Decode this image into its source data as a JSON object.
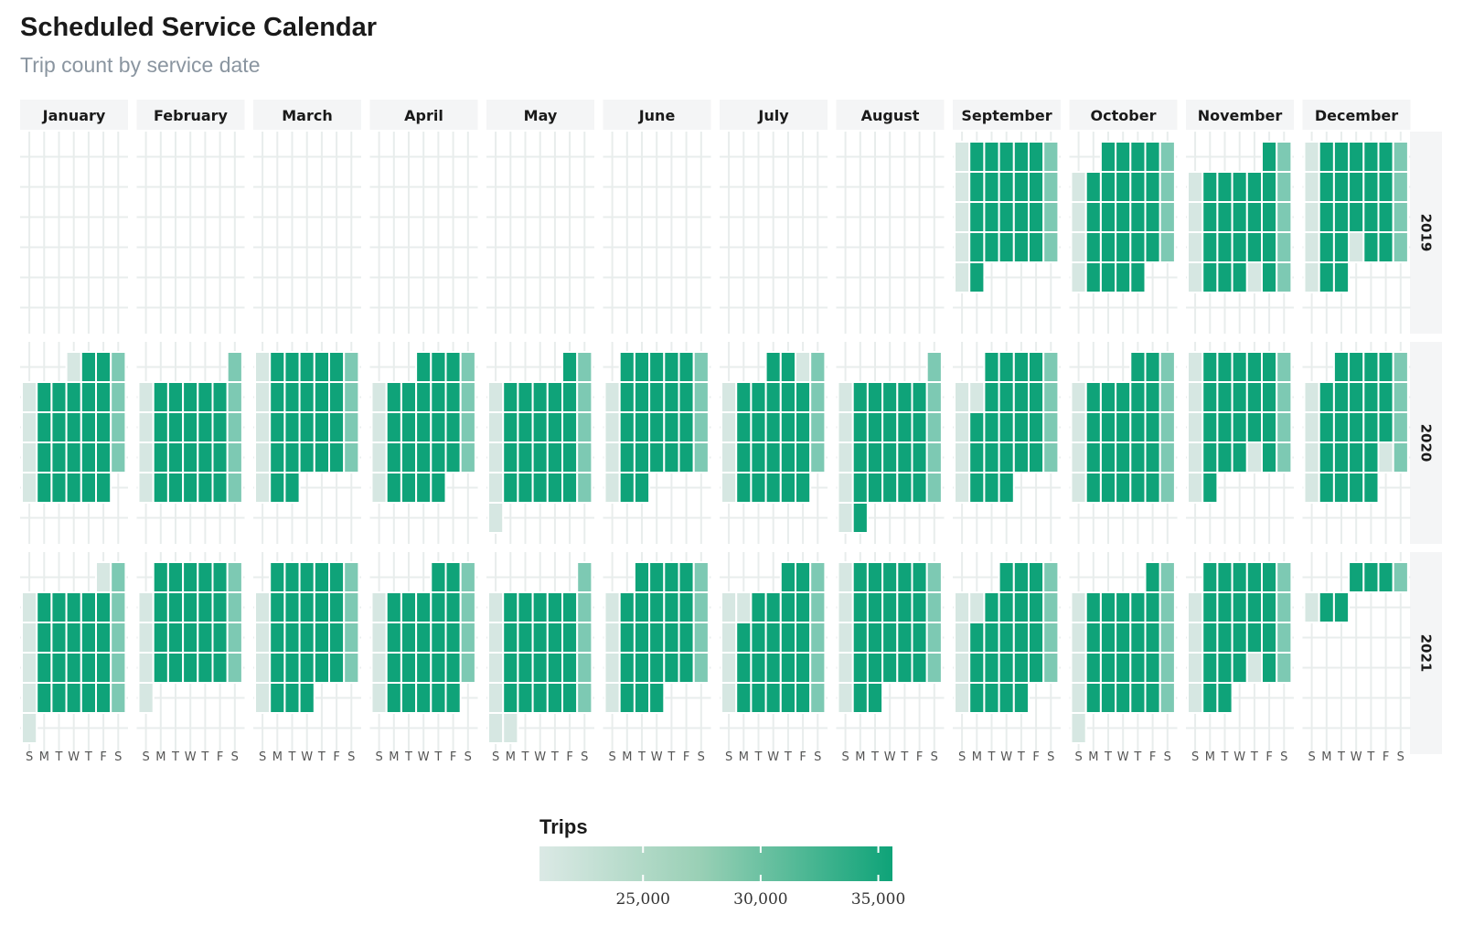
{
  "title": "Scheduled Service Calendar",
  "subtitle": "Trip count by service date",
  "chart_data": {
    "type": "heatmap",
    "title": "Scheduled Service Calendar",
    "subtitle": "Trip count by service date",
    "months": [
      "January",
      "February",
      "March",
      "April",
      "May",
      "June",
      "July",
      "August",
      "September",
      "October",
      "November",
      "December"
    ],
    "years": [
      "2019",
      "2020",
      "2021"
    ],
    "weekday_labels": [
      "S",
      "M",
      "T",
      "W",
      "T",
      "F",
      "S"
    ],
    "week_start": "Sunday",
    "cell_grid": "7 weekday columns x up to 6 week rows per month",
    "data_range": {
      "2019": "September 2019 - December 2019",
      "2020": "January 2020 - December 2020",
      "2021": "January 2021 - December 2021 (ends around December 7)"
    },
    "trip_levels": {
      "weekday": 35500,
      "saturday": 27500,
      "sunday_holiday": 21000
    },
    "legend": {
      "title": "Trips",
      "ticks": [
        25000,
        30000,
        35000
      ],
      "tick_labels": [
        "25,000",
        "30,000",
        "35,000"
      ],
      "range": [
        20600,
        35600
      ],
      "color_low": "#dbe9e5",
      "color_high": "#0ea378"
    },
    "colors": {
      "weekday": "#0ea378",
      "saturday": "#7cc4a3",
      "sunday_holiday": "#dbe9e5",
      "grid": "#e8edec",
      "strip_background": "#f4f5f6"
    },
    "holidays": [
      "2019-11-28",
      "2019-12-25",
      "2020-01-01",
      "2020-07-03",
      "2020-09-07",
      "2020-11-26",
      "2020-12-25",
      "2021-01-01",
      "2021-05-31",
      "2021-07-05",
      "2021-09-06",
      "2021-11-25"
    ],
    "start_date": "2019-09-01",
    "end_date": "2021-12-07"
  }
}
